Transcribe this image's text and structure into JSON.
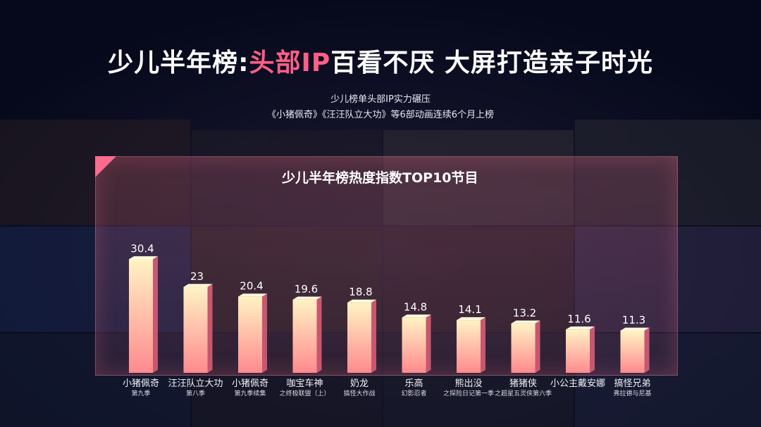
{
  "header": {
    "title_part1": "少儿半年榜:",
    "title_part2": "头部IP",
    "title_part3": "百看不厌  大屏打造亲子时光",
    "subtitle_line1": "少儿榜单头部IP实力碾压",
    "subtitle_line2": "《小猪佩奇》《汪汪队立大功》等6部动画连续6个月上榜"
  },
  "chart_data": {
    "type": "bar",
    "title": "少儿半年榜热度指数TOP10节目",
    "categories": [
      "小猪佩奇",
      "汪汪队立大功",
      "小猪佩奇",
      "咖宝车神",
      "奶龙",
      "乐高",
      "熊出没",
      "猪猪侠",
      "小公主戴安娜",
      "搞怪兄弟"
    ],
    "subcategories": [
      "第九季",
      "第八季",
      "第九季续集",
      "之终极联盟（上）",
      "搞怪大作战",
      "幻影忍者",
      "之探险日记第一季",
      "之超星五灵侠第六季",
      "",
      "弗拉德与尼基"
    ],
    "values": [
      30.4,
      23,
      20.4,
      19.6,
      18.8,
      14.8,
      14.1,
      13.2,
      11.6,
      11.3
    ],
    "value_labels": [
      "30.4",
      "23",
      "20.4",
      "19.6",
      "18.8",
      "14.8",
      "14.1",
      "13.2",
      "11.6",
      "11.3"
    ],
    "ylim": [
      0,
      32
    ],
    "grid": false,
    "colors": {
      "bar_top": "#fff3c4",
      "bar_bottom": "#ff8a8e",
      "side": "#e0607a",
      "accent": "#ff5f86"
    }
  }
}
